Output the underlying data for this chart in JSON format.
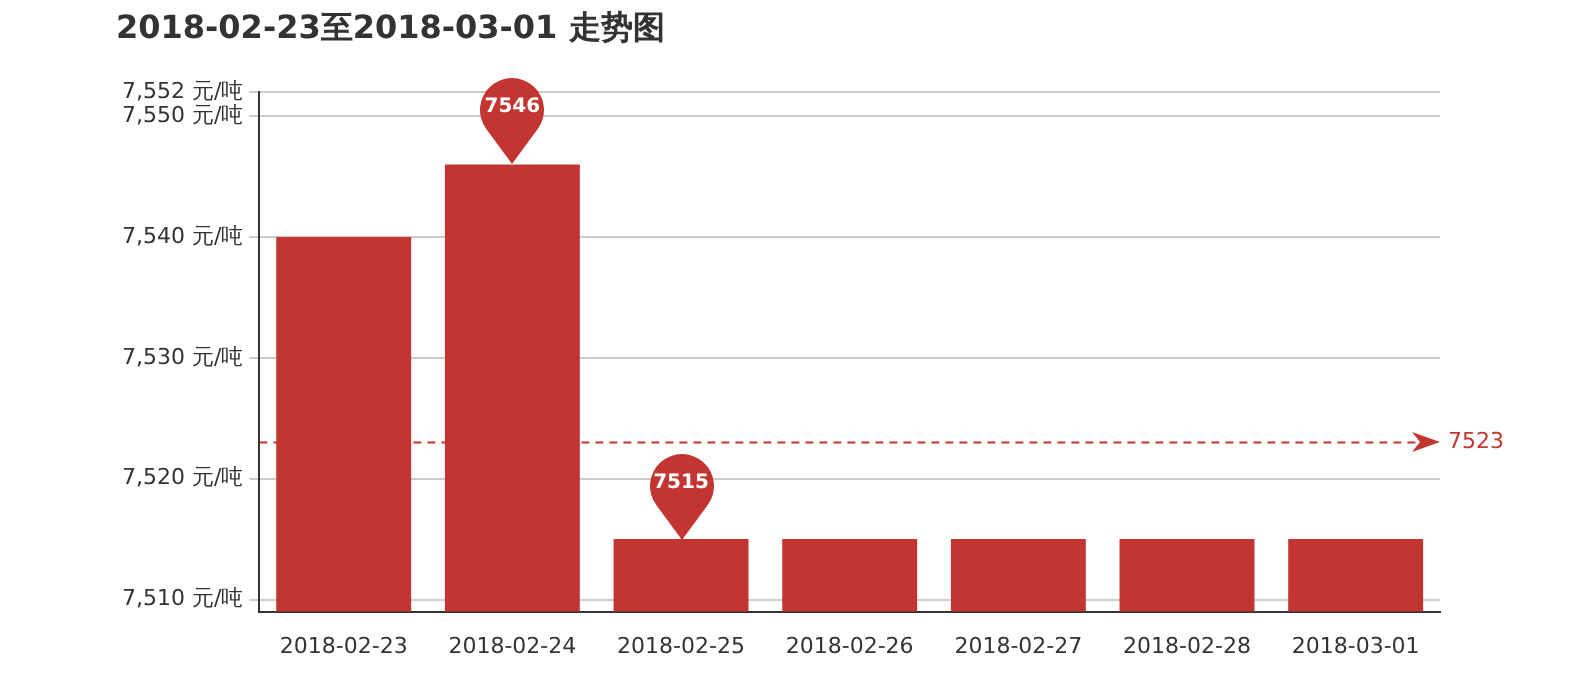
{
  "chart_data": {
    "type": "bar",
    "title": "2018-02-23至2018-03-01 走势图",
    "categories": [
      "2018-02-23",
      "2018-02-24",
      "2018-02-25",
      "2018-02-26",
      "2018-02-27",
      "2018-02-28",
      "2018-03-01"
    ],
    "values": [
      7540,
      7546,
      7515,
      7515,
      7515,
      7515,
      7515
    ],
    "color": "#c23531",
    "ylim": [
      7509,
      7552
    ],
    "yticks": [
      {
        "value": 7510,
        "label": "7,510 元/吨"
      },
      {
        "value": 7520,
        "label": "7,520 元/吨"
      },
      {
        "value": 7530,
        "label": "7,530 元/吨"
      },
      {
        "value": 7540,
        "label": "7,540 元/吨"
      },
      {
        "value": 7550,
        "label": "7,550 元/吨"
      },
      {
        "value": 7552,
        "label": "7,552 元/吨"
      }
    ],
    "grid": "y",
    "annotations": [
      {
        "text": "7546",
        "x": "2018-02-24",
        "y": 7546
      },
      {
        "text": "7515",
        "x": "2018-02-25",
        "y": 7515
      }
    ],
    "ref_lines": [
      {
        "axis": "y",
        "value": 7523,
        "label": "7523",
        "color": "#c23531",
        "line_style": "dashed"
      }
    ]
  }
}
